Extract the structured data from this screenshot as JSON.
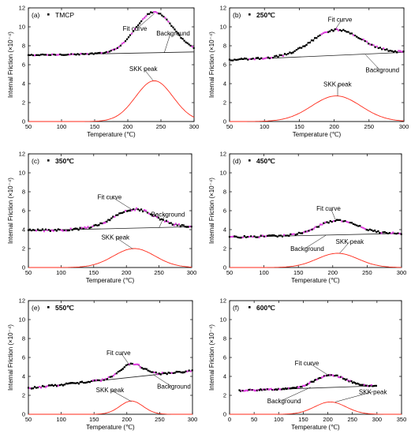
{
  "chart_data": [
    {
      "type": "line",
      "panel_label": "(a)",
      "legend": "TMCP",
      "legend_bold": false,
      "xlabel": "Temperature (℃)",
      "ylabel": "Internal Friction (×10⁻⁴)",
      "xlim": [
        50,
        300
      ],
      "ylim": [
        0,
        12
      ],
      "xticks": [
        50,
        100,
        150,
        200,
        250,
        300
      ],
      "yticks": [
        0,
        2,
        4,
        6,
        8,
        10,
        12
      ],
      "background": {
        "x": [
          50,
          300
        ],
        "y": [
          7.0,
          7.35
        ]
      },
      "peak": {
        "center": 240,
        "height": 4.3,
        "width": 40
      },
      "noise": 0.06,
      "annotations": [
        {
          "text": "Fit curve",
          "target": [
            240,
            11.4
          ],
          "anchor": "below"
        },
        {
          "text": "Background",
          "target": [
            255,
            7.25
          ],
          "anchor": "above"
        },
        {
          "text": "SKK peak",
          "target": [
            238,
            4.35
          ],
          "anchor": "above"
        }
      ]
    },
    {
      "type": "line",
      "panel_label": "(b)",
      "legend": "250℃",
      "legend_bold": true,
      "xlabel": "Temperature (℃)",
      "ylabel": "Internal Friction (×10⁻⁴)",
      "xlim": [
        50,
        300
      ],
      "ylim": [
        0,
        12
      ],
      "xticks": [
        50,
        100,
        150,
        200,
        250,
        300
      ],
      "yticks": [
        0,
        2,
        4,
        6,
        8,
        10,
        12
      ],
      "background": {
        "x": [
          50,
          300
        ],
        "y": [
          6.5,
          7.3
        ]
      },
      "peak": {
        "center": 203,
        "height": 2.7,
        "width": 50
      },
      "noise": 0.1,
      "annotations": [
        {
          "text": "Fit curve",
          "target": [
            200,
            9.55
          ],
          "anchor": "above"
        },
        {
          "text": "Background",
          "target": [
            245,
            7.05
          ],
          "anchor": "below"
        },
        {
          "text": "SKK peak",
          "target": [
            205,
            2.7
          ],
          "anchor": "above"
        }
      ]
    },
    {
      "type": "line",
      "panel_label": "(c)",
      "legend": "350℃",
      "legend_bold": true,
      "xlabel": "Temperature (℃)",
      "ylabel": "Internal Friction (×10⁻⁴)",
      "xlim": [
        50,
        300
      ],
      "ylim": [
        0,
        12
      ],
      "xticks": [
        50,
        100,
        150,
        200,
        250,
        300
      ],
      "yticks": [
        0,
        2,
        4,
        6,
        8,
        10,
        12
      ],
      "background": {
        "x": [
          50,
          300
        ],
        "y": [
          3.9,
          4.3
        ]
      },
      "peak": {
        "center": 212,
        "height": 2.0,
        "width": 45
      },
      "noise": 0.12,
      "annotations": [
        {
          "text": "Fit curve",
          "target": [
            210,
            6.05
          ],
          "anchor": "above"
        },
        {
          "text": "Background",
          "target": [
            250,
            4.2
          ],
          "anchor": "above"
        },
        {
          "text": "SKK peak",
          "target": [
            210,
            1.95
          ],
          "anchor": "above"
        }
      ]
    },
    {
      "type": "line",
      "panel_label": "(d)",
      "legend": "450℃",
      "legend_bold": true,
      "xlabel": "Temperature (℃)",
      "ylabel": "Internal Friction (×10⁻⁴)",
      "xlim": [
        50,
        300
      ],
      "ylim": [
        0,
        12
      ],
      "xticks": [
        50,
        100,
        150,
        200,
        250,
        300
      ],
      "yticks": [
        0,
        2,
        4,
        6,
        8,
        10,
        12
      ],
      "background": {
        "x": [
          50,
          300
        ],
        "y": [
          3.2,
          3.6
        ]
      },
      "peak": {
        "center": 207,
        "height": 1.5,
        "width": 42
      },
      "noise": 0.1,
      "annotations": [
        {
          "text": "Fit curve",
          "target": [
            205,
            4.85
          ],
          "anchor": "above"
        },
        {
          "text": "Background",
          "target": [
            190,
            3.4
          ],
          "anchor": "below"
        },
        {
          "text": "SKK peak",
          "target": [
            210,
            1.5
          ],
          "anchor": "above"
        }
      ]
    },
    {
      "type": "line",
      "panel_label": "(e)",
      "legend": "550℃",
      "legend_bold": true,
      "xlabel": "Temperature (℃)",
      "ylabel": "Internal Friction (×10⁻⁴)",
      "xlim": [
        50,
        300
      ],
      "ylim": [
        0,
        12
      ],
      "xticks": [
        50,
        100,
        150,
        200,
        250,
        300
      ],
      "yticks": [
        0,
        2,
        4,
        6,
        8,
        10,
        12
      ],
      "background": {
        "x": [
          50,
          300
        ],
        "y": [
          2.75,
          4.6
        ]
      },
      "peak": {
        "center": 207,
        "height": 1.4,
        "width": 25
      },
      "noise": 0.1,
      "annotations": [
        {
          "text": "Fit curve",
          "target": [
            205,
            5.1
          ],
          "anchor": "above"
        },
        {
          "text": "Background",
          "target": [
            240,
            4.2
          ],
          "anchor": "below"
        },
        {
          "text": "SKK peak",
          "target": [
            207,
            1.35
          ],
          "anchor": "above"
        }
      ]
    },
    {
      "type": "line",
      "panel_label": "(f)",
      "legend": "600℃",
      "legend_bold": true,
      "xlabel": "Temperature (℃)",
      "ylabel": "Internal Friction (×10⁻⁴)",
      "xlim": [
        0,
        350
      ],
      "ylim": [
        0,
        12
      ],
      "xticks": [
        0,
        50,
        100,
        150,
        200,
        250,
        300,
        350
      ],
      "yticks": [
        0,
        2,
        4,
        6,
        8,
        10,
        12
      ],
      "data_xlim": [
        20,
        300
      ],
      "background": {
        "x": [
          20,
          300
        ],
        "y": [
          2.5,
          3.0
        ]
      },
      "peak": {
        "center": 205,
        "height": 1.3,
        "width": 45
      },
      "noise": 0.07,
      "annotations": [
        {
          "text": "Fit curve",
          "target": [
            205,
            4.0
          ],
          "anchor": "above"
        },
        {
          "text": "Background",
          "target": [
            165,
            2.85
          ],
          "anchor": "below"
        },
        {
          "text": "SKK peak",
          "target": [
            215,
            1.3
          ],
          "anchor": "right"
        }
      ]
    }
  ]
}
